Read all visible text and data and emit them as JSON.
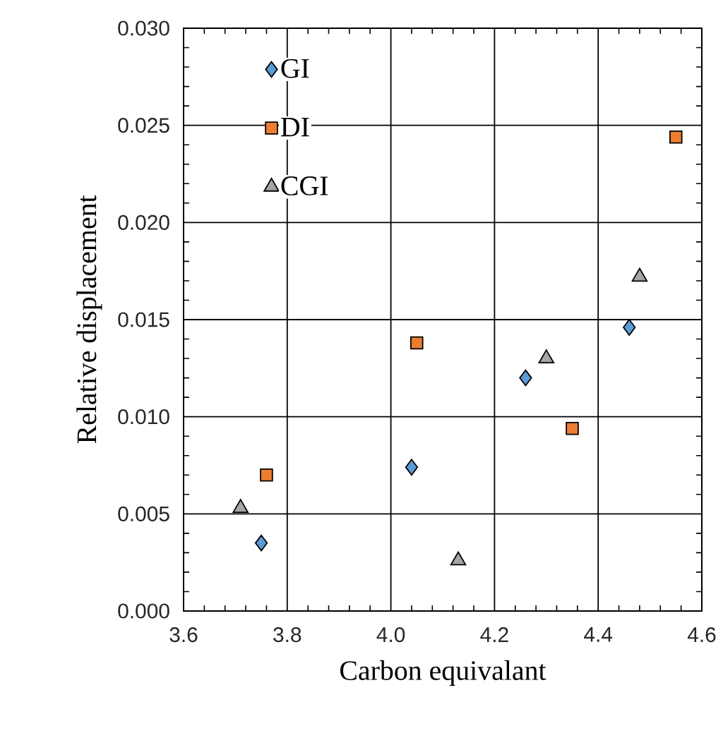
{
  "chart_data": {
    "type": "scatter",
    "xlabel": "Carbon equivalant",
    "ylabel": "Relative displacement",
    "xlim": [
      3.6,
      4.6
    ],
    "xticks": [
      {
        "value": 3.6,
        "label": "3.6"
      },
      {
        "value": 3.8,
        "label": "3.8"
      },
      {
        "value": 4.0,
        "label": "4.0"
      },
      {
        "value": 4.2,
        "label": "4.2"
      },
      {
        "value": 4.4,
        "label": "4.4"
      },
      {
        "value": 4.6,
        "label": "4.6"
      }
    ],
    "ylim": [
      0,
      0.03
    ],
    "yticks": [
      {
        "value": 0,
        "label": "0.000"
      },
      {
        "value": 0.005,
        "label": "0.005"
      },
      {
        "value": 0.01,
        "label": "0.010"
      },
      {
        "value": 0.015,
        "label": "0.015"
      },
      {
        "value": 0.02,
        "label": "0.020"
      },
      {
        "value": 0.025,
        "label": "0.025"
      },
      {
        "value": 0.03,
        "label": "0.030"
      }
    ],
    "grid": true,
    "legend": "top left",
    "series": [
      {
        "name": "GI",
        "color": "#5b9bd5",
        "marker": "diamond",
        "x": [
          3.75,
          4.04,
          4.26,
          4.46
        ],
        "values": [
          0.0035,
          0.0074,
          0.012,
          0.0146
        ]
      },
      {
        "name": "DI",
        "color": "#ed7d31",
        "marker": "square",
        "x": [
          3.76,
          4.05,
          4.35,
          4.55
        ],
        "values": [
          0.007,
          0.0138,
          0.0094,
          0.0244
        ]
      },
      {
        "name": "CGI",
        "color": "#a5a5a5",
        "marker": "triangle",
        "x": [
          3.71,
          4.13,
          4.3,
          4.48
        ],
        "values": [
          0.0053,
          0.0026,
          0.013,
          0.0172
        ]
      }
    ]
  }
}
